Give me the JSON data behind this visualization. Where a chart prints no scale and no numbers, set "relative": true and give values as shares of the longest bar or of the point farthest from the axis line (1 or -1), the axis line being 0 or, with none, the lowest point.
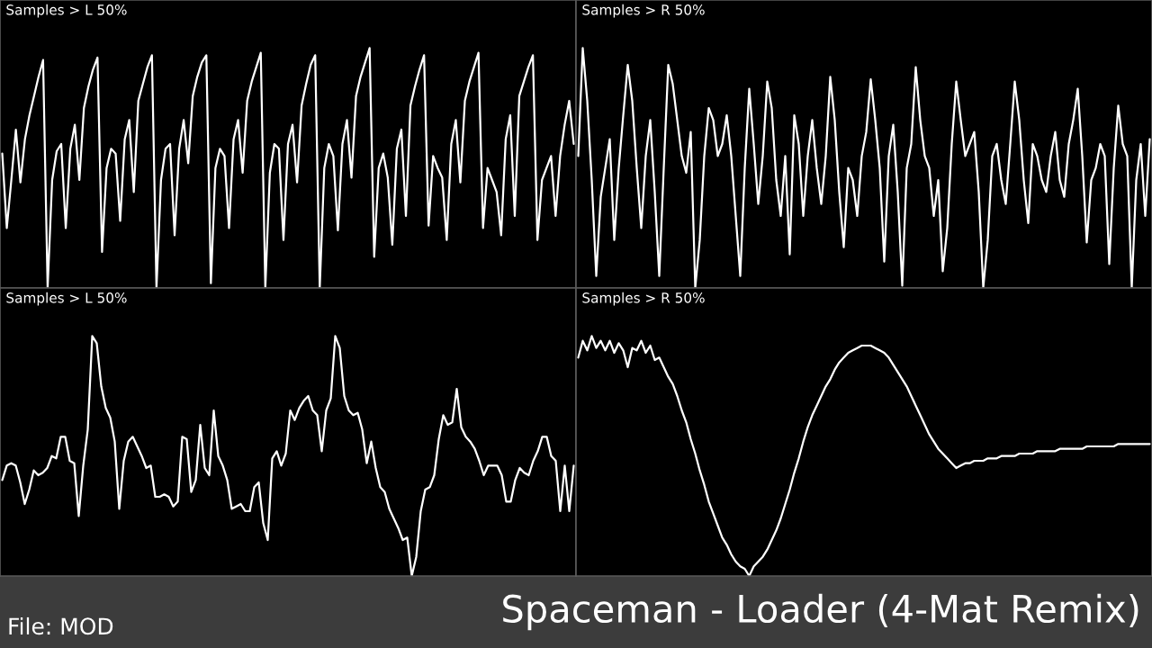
{
  "chart_data": [
    {
      "type": "line",
      "title": "Samples > L 50%",
      "relative": true,
      "categories": [
        null,
        null,
        null,
        null,
        null,
        null,
        null,
        null,
        null,
        null,
        null,
        null,
        null,
        null,
        null,
        null,
        null,
        null,
        null,
        null,
        null,
        null,
        null,
        null,
        null,
        null,
        null,
        null,
        null,
        null,
        null,
        null,
        null,
        null,
        null,
        null,
        null,
        null,
        null,
        null,
        null,
        null,
        null,
        null,
        null,
        null,
        null,
        null,
        null,
        null,
        null,
        null,
        null,
        null,
        null,
        null,
        null,
        null,
        null,
        null,
        null,
        null,
        null,
        null,
        null,
        null,
        null,
        null,
        null,
        null,
        null,
        null,
        null,
        null,
        null,
        null,
        null,
        null,
        null,
        null,
        null,
        null,
        null,
        null,
        null,
        null,
        null,
        null,
        null,
        null,
        null,
        null,
        null,
        null,
        null,
        null,
        null,
        null,
        null,
        null,
        null,
        null,
        null,
        null,
        null,
        null,
        null,
        null,
        null,
        null,
        null,
        null,
        null,
        null,
        null,
        null,
        null,
        null,
        null,
        null,
        null,
        null,
        null,
        null,
        null,
        null,
        null
      ],
      "series": [
        {
          "color": "#ffffff",
          "values": [
            0.56,
            0.25,
            0.45,
            0.66,
            0.44,
            0.62,
            0.72,
            0.8,
            0.88,
            0.95,
            0.0,
            0.45,
            0.57,
            0.6,
            0.25,
            0.58,
            0.68,
            0.45,
            0.75,
            0.84,
            0.91,
            0.96,
            0.15,
            0.5,
            0.58,
            0.56,
            0.28,
            0.62,
            0.7,
            0.4,
            0.78,
            0.85,
            0.92,
            0.97,
            0.0,
            0.45,
            0.58,
            0.6,
            0.22,
            0.58,
            0.7,
            0.52,
            0.8,
            0.88,
            0.94,
            0.97,
            0.02,
            0.5,
            0.58,
            0.55,
            0.25,
            0.62,
            0.7,
            0.48,
            0.78,
            0.86,
            0.92,
            0.98,
            0.0,
            0.48,
            0.6,
            0.58,
            0.2,
            0.6,
            0.68,
            0.44,
            0.76,
            0.85,
            0.93,
            0.97,
            0.0,
            0.5,
            0.6,
            0.55,
            0.24,
            0.6,
            0.7,
            0.46,
            0.8,
            0.88,
            0.94,
            1.0,
            0.13,
            0.5,
            0.56,
            0.46,
            0.18,
            0.58,
            0.66,
            0.3,
            0.76,
            0.84,
            0.91,
            0.97,
            0.26,
            0.55,
            0.5,
            0.46,
            0.2,
            0.6,
            0.7,
            0.44,
            0.78,
            0.86,
            0.92,
            0.98,
            0.25,
            0.5,
            0.45,
            0.4,
            0.22,
            0.62,
            0.72,
            0.3,
            0.8,
            0.86,
            0.92,
            0.97,
            0.2,
            0.45,
            0.5,
            0.55,
            0.3,
            0.55,
            0.68,
            0.78,
            0.6
          ]
        }
      ]
    },
    {
      "type": "line",
      "title": "Samples > R 50%",
      "relative": true,
      "categories": [
        null,
        null,
        null,
        null,
        null,
        null,
        null,
        null,
        null,
        null,
        null,
        null,
        null,
        null,
        null,
        null,
        null,
        null,
        null,
        null,
        null,
        null,
        null,
        null,
        null,
        null,
        null,
        null,
        null,
        null,
        null,
        null,
        null,
        null,
        null,
        null,
        null,
        null,
        null,
        null,
        null,
        null,
        null,
        null,
        null,
        null,
        null,
        null,
        null,
        null,
        null,
        null,
        null,
        null,
        null,
        null,
        null,
        null,
        null,
        null,
        null,
        null,
        null,
        null,
        null,
        null,
        null,
        null,
        null,
        null,
        null,
        null,
        null,
        null,
        null,
        null,
        null,
        null,
        null,
        null,
        null,
        null,
        null,
        null,
        null,
        null,
        null,
        null,
        null,
        null,
        null,
        null,
        null,
        null,
        null,
        null,
        null,
        null,
        null,
        null,
        null,
        null,
        null,
        null,
        null,
        null,
        null,
        null,
        null,
        null,
        null,
        null,
        null,
        null,
        null,
        null,
        null,
        null,
        null,
        null,
        null,
        null,
        null,
        null,
        null,
        null,
        null,
        null
      ],
      "series": [
        {
          "color": "#ffffff",
          "values": [
            0.55,
            1.0,
            0.78,
            0.45,
            0.05,
            0.38,
            0.5,
            0.62,
            0.2,
            0.5,
            0.72,
            0.93,
            0.78,
            0.5,
            0.25,
            0.55,
            0.7,
            0.4,
            0.05,
            0.5,
            0.93,
            0.85,
            0.7,
            0.55,
            0.48,
            0.65,
            0.0,
            0.2,
            0.55,
            0.75,
            0.7,
            0.55,
            0.6,
            0.72,
            0.55,
            0.3,
            0.05,
            0.5,
            0.83,
            0.6,
            0.35,
            0.55,
            0.86,
            0.75,
            0.45,
            0.3,
            0.55,
            0.14,
            0.72,
            0.6,
            0.3,
            0.55,
            0.7,
            0.5,
            0.35,
            0.55,
            0.88,
            0.7,
            0.4,
            0.17,
            0.5,
            0.45,
            0.3,
            0.55,
            0.65,
            0.87,
            0.7,
            0.5,
            0.11,
            0.55,
            0.68,
            0.4,
            0.01,
            0.5,
            0.6,
            0.92,
            0.7,
            0.55,
            0.5,
            0.3,
            0.45,
            0.07,
            0.25,
            0.6,
            0.86,
            0.7,
            0.55,
            0.6,
            0.65,
            0.4,
            0.0,
            0.2,
            0.55,
            0.6,
            0.45,
            0.35,
            0.6,
            0.86,
            0.7,
            0.45,
            0.27,
            0.6,
            0.55,
            0.45,
            0.4,
            0.55,
            0.65,
            0.45,
            0.38,
            0.6,
            0.7,
            0.83,
            0.55,
            0.19,
            0.45,
            0.5,
            0.6,
            0.55,
            0.1,
            0.5,
            0.76,
            0.6,
            0.55,
            0.0,
            0.45,
            0.6,
            0.3,
            0.62
          ]
        }
      ]
    },
    {
      "type": "line",
      "title": "Samples > L 50%",
      "relative": true,
      "annotations": [
        "File: MOD"
      ],
      "categories": [
        null,
        null,
        null,
        null,
        null,
        null,
        null,
        null,
        null,
        null,
        null,
        null,
        null,
        null,
        null,
        null,
        null,
        null,
        null,
        null,
        null,
        null,
        null,
        null,
        null,
        null,
        null,
        null,
        null,
        null,
        null,
        null,
        null,
        null,
        null,
        null,
        null,
        null,
        null,
        null,
        null,
        null,
        null,
        null,
        null,
        null,
        null,
        null,
        null,
        null,
        null,
        null,
        null,
        null,
        null,
        null,
        null,
        null,
        null,
        null,
        null,
        null,
        null,
        null,
        null,
        null,
        null,
        null,
        null,
        null,
        null,
        null,
        null,
        null,
        null,
        null,
        null,
        null,
        null,
        null,
        null,
        null,
        null,
        null,
        null,
        null,
        null,
        null,
        null,
        null,
        null,
        null,
        null,
        null,
        null,
        null,
        null,
        null,
        null,
        null,
        null,
        null,
        null,
        null,
        null,
        null,
        null,
        null,
        null,
        null,
        null,
        null,
        null,
        null,
        null,
        null,
        null,
        null,
        null,
        null,
        null,
        null,
        null,
        null,
        null,
        null,
        null,
        null
      ],
      "series": [
        {
          "color": "#ffffff",
          "values": [
            0.4,
            0.46,
            0.47,
            0.46,
            0.39,
            0.3,
            0.36,
            0.44,
            0.42,
            0.43,
            0.45,
            0.5,
            0.49,
            0.58,
            0.58,
            0.48,
            0.47,
            0.25,
            0.46,
            0.61,
            1.0,
            0.97,
            0.79,
            0.7,
            0.66,
            0.56,
            0.28,
            0.48,
            0.56,
            0.58,
            0.54,
            0.5,
            0.45,
            0.46,
            0.33,
            0.33,
            0.34,
            0.33,
            0.29,
            0.31,
            0.58,
            0.57,
            0.35,
            0.4,
            0.63,
            0.45,
            0.42,
            0.69,
            0.5,
            0.46,
            0.4,
            0.28,
            0.29,
            0.3,
            0.27,
            0.27,
            0.37,
            0.39,
            0.22,
            0.15,
            0.49,
            0.52,
            0.46,
            0.51,
            0.69,
            0.65,
            0.7,
            0.73,
            0.75,
            0.69,
            0.67,
            0.52,
            0.69,
            0.74,
            1.0,
            0.95,
            0.75,
            0.69,
            0.67,
            0.68,
            0.61,
            0.47,
            0.56,
            0.45,
            0.37,
            0.35,
            0.28,
            0.24,
            0.2,
            0.15,
            0.16,
            0.0,
            0.08,
            0.27,
            0.36,
            0.37,
            0.42,
            0.57,
            0.67,
            0.63,
            0.64,
            0.78,
            0.62,
            0.58,
            0.56,
            0.53,
            0.48,
            0.42,
            0.46,
            0.46,
            0.46,
            0.42,
            0.31,
            0.31,
            0.4,
            0.45,
            0.43,
            0.42,
            0.48,
            0.52,
            0.58,
            0.58,
            0.5,
            0.48,
            0.27,
            0.46,
            0.27,
            0.46
          ]
        }
      ]
    },
    {
      "type": "line",
      "title": "Samples > R 50%",
      "relative": true,
      "annotations": [
        "Spaceman - Loader (4-Mat Remix)"
      ],
      "categories": [
        null,
        null,
        null,
        null,
        null,
        null,
        null,
        null,
        null,
        null,
        null,
        null,
        null,
        null,
        null,
        null,
        null,
        null,
        null,
        null,
        null,
        null,
        null,
        null,
        null,
        null,
        null,
        null,
        null,
        null,
        null,
        null,
        null,
        null,
        null,
        null,
        null,
        null,
        null,
        null,
        null,
        null,
        null,
        null,
        null,
        null,
        null,
        null,
        null,
        null,
        null,
        null,
        null,
        null,
        null,
        null,
        null,
        null,
        null,
        null,
        null,
        null,
        null,
        null,
        null,
        null,
        null,
        null,
        null,
        null,
        null,
        null,
        null,
        null,
        null,
        null,
        null,
        null,
        null,
        null,
        null,
        null,
        null,
        null,
        null,
        null,
        null,
        null,
        null,
        null,
        null,
        null,
        null,
        null,
        null,
        null,
        null,
        null,
        null,
        null,
        null,
        null,
        null,
        null,
        null,
        null,
        null,
        null,
        null,
        null,
        null,
        null,
        null,
        null,
        null,
        null,
        null,
        null,
        null,
        null,
        null,
        null,
        null,
        null,
        null,
        null,
        null,
        null
      ],
      "series": [
        {
          "color": "#ffffff",
          "values": [
            0.91,
            0.98,
            0.94,
            1.0,
            0.95,
            0.98,
            0.94,
            0.98,
            0.93,
            0.97,
            0.94,
            0.87,
            0.95,
            0.94,
            0.98,
            0.93,
            0.96,
            0.9,
            0.91,
            0.87,
            0.83,
            0.8,
            0.75,
            0.69,
            0.64,
            0.57,
            0.51,
            0.44,
            0.38,
            0.31,
            0.26,
            0.21,
            0.16,
            0.13,
            0.09,
            0.06,
            0.04,
            0.03,
            0.0,
            0.04,
            0.06,
            0.08,
            0.11,
            0.15,
            0.19,
            0.24,
            0.3,
            0.36,
            0.43,
            0.49,
            0.56,
            0.62,
            0.67,
            0.71,
            0.75,
            0.79,
            0.82,
            0.86,
            0.89,
            0.91,
            0.93,
            0.94,
            0.95,
            0.96,
            0.96,
            0.96,
            0.95,
            0.94,
            0.93,
            0.91,
            0.88,
            0.85,
            0.82,
            0.79,
            0.75,
            0.71,
            0.67,
            0.63,
            0.59,
            0.56,
            0.53,
            0.51,
            0.49,
            0.47,
            0.45,
            0.46,
            0.47,
            0.47,
            0.48,
            0.48,
            0.48,
            0.49,
            0.49,
            0.49,
            0.5,
            0.5,
            0.5,
            0.5,
            0.51,
            0.51,
            0.51,
            0.51,
            0.52,
            0.52,
            0.52,
            0.52,
            0.52,
            0.53,
            0.53,
            0.53,
            0.53,
            0.53,
            0.53,
            0.54,
            0.54,
            0.54,
            0.54,
            0.54,
            0.54,
            0.54,
            0.55,
            0.55,
            0.55,
            0.55,
            0.55,
            0.55,
            0.55,
            0.55
          ]
        }
      ]
    }
  ]
}
